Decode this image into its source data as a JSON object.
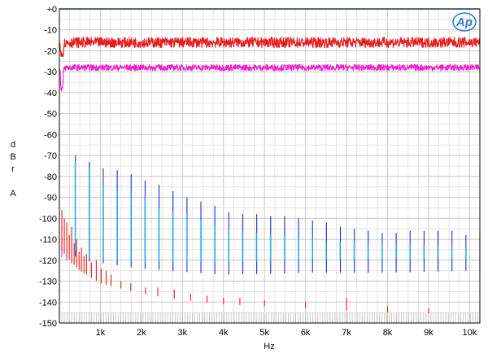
{
  "chart_data": {
    "type": "line",
    "title": "",
    "xlabel": "Hz",
    "ylabel": [
      "d",
      "B",
      "r",
      "",
      "A"
    ],
    "xlim": [
      0,
      10250
    ],
    "ylim": [
      -150,
      0
    ],
    "xticks": [
      {
        "value": 1000,
        "label": "1k"
      },
      {
        "value": 2000,
        "label": "2k"
      },
      {
        "value": 3000,
        "label": "3k"
      },
      {
        "value": 4000,
        "label": "4k"
      },
      {
        "value": 5000,
        "label": "5k"
      },
      {
        "value": 6000,
        "label": "6k"
      },
      {
        "value": 7000,
        "label": "7k"
      },
      {
        "value": 8000,
        "label": "8k"
      },
      {
        "value": 9000,
        "label": "9k"
      },
      {
        "value": 10000,
        "label": "10k"
      }
    ],
    "yticks": [
      {
        "value": 0,
        "label": "+0"
      },
      {
        "value": -10,
        "label": "-10"
      },
      {
        "value": -20,
        "label": "-20"
      },
      {
        "value": -30,
        "label": "-30"
      },
      {
        "value": -40,
        "label": "-40"
      },
      {
        "value": -50,
        "label": "-50"
      },
      {
        "value": -60,
        "label": "-60"
      },
      {
        "value": -70,
        "label": "-70"
      },
      {
        "value": -80,
        "label": "-80"
      },
      {
        "value": -90,
        "label": "-90"
      },
      {
        "value": -100,
        "label": "-100"
      },
      {
        "value": -110,
        "label": "-110"
      },
      {
        "value": -120,
        "label": "-120"
      },
      {
        "value": -130,
        "label": "-130"
      },
      {
        "value": -140,
        "label": "-140"
      },
      {
        "value": -150,
        "label": "-150"
      }
    ],
    "grid": true,
    "logo": "Ap",
    "series": [
      {
        "color": "#1a2fd6",
        "harmonic_spacing_hz": 340,
        "noise_floor": [
          [
            0,
            -112
          ],
          [
            500,
            -120
          ],
          [
            2000,
            -124
          ],
          [
            4000,
            -127
          ],
          [
            6000,
            -126
          ],
          [
            8000,
            -126
          ],
          [
            10000,
            -125
          ]
        ],
        "peaks": [
          {
            "x": 390,
            "y": -70
          },
          {
            "x": 730,
            "y": -73
          },
          {
            "x": 1070,
            "y": -76
          },
          {
            "x": 1410,
            "y": -77
          },
          {
            "x": 1750,
            "y": -79
          },
          {
            "x": 2090,
            "y": -82
          },
          {
            "x": 2430,
            "y": -84
          },
          {
            "x": 2770,
            "y": -87
          },
          {
            "x": 3110,
            "y": -90
          },
          {
            "x": 3450,
            "y": -92
          },
          {
            "x": 3790,
            "y": -94
          },
          {
            "x": 4130,
            "y": -97
          },
          {
            "x": 4470,
            "y": -98
          },
          {
            "x": 4810,
            "y": -98
          },
          {
            "x": 5150,
            "y": -99
          },
          {
            "x": 5490,
            "y": -99
          },
          {
            "x": 5830,
            "y": -100
          },
          {
            "x": 6170,
            "y": -101
          },
          {
            "x": 6510,
            "y": -102
          },
          {
            "x": 6850,
            "y": -104
          },
          {
            "x": 7190,
            "y": -105
          },
          {
            "x": 7530,
            "y": -106
          },
          {
            "x": 7870,
            "y": -107
          },
          {
            "x": 8210,
            "y": -107
          },
          {
            "x": 8550,
            "y": -106
          },
          {
            "x": 8890,
            "y": -106
          },
          {
            "x": 9230,
            "y": -106
          },
          {
            "x": 9570,
            "y": -106
          },
          {
            "x": 9910,
            "y": -108
          },
          {
            "x": 10250,
            "y": -109
          }
        ]
      },
      {
        "color": "#33e0f0",
        "harmonic_spacing_hz": 340,
        "noise_floor": [
          [
            0,
            -108
          ],
          [
            500,
            -118
          ],
          [
            2000,
            -121
          ],
          [
            4000,
            -121
          ],
          [
            6000,
            -120
          ],
          [
            8000,
            -119
          ],
          [
            10000,
            -119
          ]
        ],
        "peaks": [
          {
            "x": 0,
            "y": -57
          },
          {
            "x": 380,
            "y": -73
          },
          {
            "x": 720,
            "y": -76
          },
          {
            "x": 1060,
            "y": -84
          },
          {
            "x": 1400,
            "y": -86
          },
          {
            "x": 1740,
            "y": -88
          },
          {
            "x": 2080,
            "y": -90
          },
          {
            "x": 2420,
            "y": -95
          },
          {
            "x": 2760,
            "y": -97
          },
          {
            "x": 3100,
            "y": -98
          },
          {
            "x": 3440,
            "y": -101
          },
          {
            "x": 3780,
            "y": -104
          },
          {
            "x": 4120,
            "y": -105
          },
          {
            "x": 4460,
            "y": -106
          },
          {
            "x": 4800,
            "y": -107
          },
          {
            "x": 5140,
            "y": -108
          },
          {
            "x": 5480,
            "y": -108
          },
          {
            "x": 5820,
            "y": -109
          },
          {
            "x": 6160,
            "y": -110
          },
          {
            "x": 6500,
            "y": -111
          },
          {
            "x": 6840,
            "y": -111
          },
          {
            "x": 7180,
            "y": -111
          },
          {
            "x": 7520,
            "y": -112
          },
          {
            "x": 7860,
            "y": -112
          },
          {
            "x": 8200,
            "y": -112
          },
          {
            "x": 8540,
            "y": -113
          },
          {
            "x": 8880,
            "y": -113
          },
          {
            "x": 9220,
            "y": -113
          },
          {
            "x": 9560,
            "y": -113
          },
          {
            "x": 9900,
            "y": -114
          }
        ]
      },
      {
        "color": "#ee22cc",
        "noise_floor": [
          [
            0,
            -118
          ],
          [
            500,
            -124
          ],
          [
            1000,
            -127
          ],
          [
            2000,
            -129
          ],
          [
            4000,
            -130
          ],
          [
            7000,
            -131
          ],
          [
            10250,
            -130
          ]
        ],
        "peaks": [
          {
            "x": 60,
            "y": -108
          },
          {
            "x": 180,
            "y": -118
          },
          {
            "x": 300,
            "y": -121
          },
          {
            "x": 420,
            "y": -123
          }
        ]
      },
      {
        "color": "#e81c1c",
        "noise_floor": [
          [
            0,
            -114
          ],
          [
            250,
            -120
          ],
          [
            500,
            -125
          ],
          [
            1000,
            -131
          ],
          [
            2000,
            -136
          ],
          [
            3000,
            -139
          ],
          [
            4000,
            -141
          ],
          [
            6000,
            -143
          ],
          [
            8000,
            -145
          ],
          [
            10250,
            -146
          ]
        ],
        "peaks": [
          {
            "x": 60,
            "y": -96
          },
          {
            "x": 120,
            "y": -100
          },
          {
            "x": 180,
            "y": -102
          },
          {
            "x": 240,
            "y": -108
          },
          {
            "x": 300,
            "y": -104
          },
          {
            "x": 360,
            "y": -112
          },
          {
            "x": 420,
            "y": -110
          },
          {
            "x": 480,
            "y": -116
          },
          {
            "x": 540,
            "y": -114
          },
          {
            "x": 600,
            "y": -118
          },
          {
            "x": 660,
            "y": -117
          },
          {
            "x": 780,
            "y": -121
          },
          {
            "x": 900,
            "y": -120
          },
          {
            "x": 1020,
            "y": -124
          },
          {
            "x": 1140,
            "y": -125
          },
          {
            "x": 1260,
            "y": -127
          },
          {
            "x": 1500,
            "y": -130
          },
          {
            "x": 1740,
            "y": -131
          },
          {
            "x": 2100,
            "y": -133
          },
          {
            "x": 2400,
            "y": -133
          },
          {
            "x": 2800,
            "y": -134
          },
          {
            "x": 3200,
            "y": -136
          },
          {
            "x": 3600,
            "y": -137
          },
          {
            "x": 4000,
            "y": -138
          },
          {
            "x": 4400,
            "y": -138
          },
          {
            "x": 5000,
            "y": -139
          },
          {
            "x": 6000,
            "y": -140
          },
          {
            "x": 7000,
            "y": -138
          },
          {
            "x": 8000,
            "y": -142
          },
          {
            "x": 9000,
            "y": -143
          }
        ]
      }
    ]
  }
}
